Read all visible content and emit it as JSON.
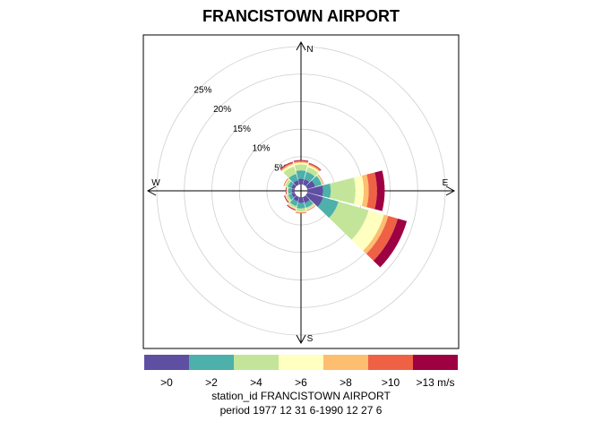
{
  "chart_data": {
    "type": "windrose",
    "title": "FRANCISTOWN AIRPORT",
    "compass_labels": {
      "north": "N",
      "south": "S",
      "east": "E",
      "west": "W"
    },
    "radial_ticks": [
      5,
      10,
      15,
      20,
      25
    ],
    "radial_tick_labels": [
      "5%",
      "10%",
      "15%",
      "20%",
      "25%"
    ],
    "radial_max_percent": 28,
    "calm_inner_radius_percent": 1.2,
    "speed_bins": [
      {
        "label": ">0",
        "color": "#5E4FA2"
      },
      {
        "label": ">2",
        "color": "#4DB0AA"
      },
      {
        "label": ">4",
        "color": "#C2E59A"
      },
      {
        "label": ">6",
        "color": "#FFFFBF"
      },
      {
        "label": ">8",
        "color": "#FDBE6F"
      },
      {
        "label": ">10",
        "color": "#EE6144"
      },
      {
        "label": ">13 m/s",
        "color": "#9E0142"
      }
    ],
    "directions_deg": [
      0,
      30,
      60,
      90,
      120,
      150,
      180,
      210,
      240,
      270,
      300,
      330
    ],
    "cumulative_percent": [
      [
        1.0,
        2.5,
        3.6,
        3.9,
        4.1,
        4.3,
        4.4
      ],
      [
        1.0,
        2.4,
        3.3,
        3.6,
        3.8,
        4.0,
        4.1
      ],
      [
        1.5,
        2.7,
        2.9,
        3.0,
        3.0,
        3.1,
        3.1
      ],
      [
        2.8,
        4.2,
        8.7,
        10.2,
        11.1,
        12.6,
        14.0
      ],
      [
        3.0,
        5.9,
        11.6,
        14.5,
        15.3,
        17.1,
        18.8
      ],
      [
        1.1,
        2.0,
        2.3,
        2.4,
        2.5,
        2.6,
        2.6
      ],
      [
        1.0,
        2.0,
        2.6,
        2.7,
        2.8,
        2.9,
        2.9
      ],
      [
        0.8,
        1.7,
        2.1,
        2.2,
        2.3,
        2.4,
        2.5
      ],
      [
        0.6,
        1.2,
        1.6,
        1.7,
        1.8,
        1.9,
        2.0
      ],
      [
        0.5,
        1.1,
        1.3,
        1.4,
        1.5,
        1.5,
        1.6
      ],
      [
        0.6,
        1.3,
        1.8,
        1.9,
        2.0,
        2.1,
        2.1
      ],
      [
        0.8,
        2.0,
        3.4,
        3.8,
        4.0,
        4.2,
        4.3
      ]
    ],
    "caption_line1": "station_id FRANCISTOWN AIRPORT",
    "caption_line2": "period 1977 12 31 6-1990 12 27 6"
  }
}
